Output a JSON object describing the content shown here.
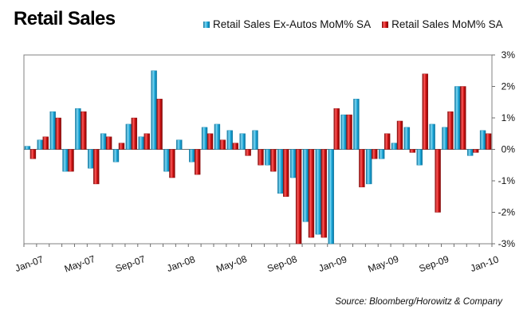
{
  "chart_data": {
    "type": "bar",
    "title": "Retail Sales",
    "categories": [
      "Jan-07",
      "Feb-07",
      "Mar-07",
      "Apr-07",
      "May-07",
      "Jun-07",
      "Jul-07",
      "Aug-07",
      "Sep-07",
      "Oct-07",
      "Nov-07",
      "Dec-07",
      "Jan-08",
      "Feb-08",
      "Mar-08",
      "Apr-08",
      "May-08",
      "Jun-08",
      "Jul-08",
      "Aug-08",
      "Sep-08",
      "Oct-08",
      "Nov-08",
      "Dec-08",
      "Jan-09",
      "Feb-09",
      "Mar-09",
      "Apr-09",
      "May-09",
      "Jun-09",
      "Jul-09",
      "Aug-09",
      "Sep-09",
      "Oct-09",
      "Nov-09",
      "Dec-09",
      "Jan-10"
    ],
    "x_tick_labels": [
      "Jan-07",
      "May-07",
      "Sep-07",
      "Jan-08",
      "May-08",
      "Sep-08",
      "Jan-09",
      "May-09",
      "Sep-09",
      "Jan-10"
    ],
    "series": [
      {
        "name": "Retail Sales Ex-Autos MoM% SA",
        "color": "#1aa6d8",
        "values": [
          0.1,
          0.3,
          1.2,
          -0.7,
          1.3,
          -0.6,
          0.5,
          -0.4,
          0.8,
          0.4,
          2.5,
          -0.7,
          0.3,
          -0.4,
          0.7,
          0.8,
          0.6,
          0.5,
          0.6,
          -0.5,
          -1.4,
          -0.9,
          -2.3,
          -2.7,
          -3.0,
          1.1,
          1.6,
          -1.1,
          -0.3,
          0.2,
          0.7,
          -0.5,
          0.8,
          0.7,
          2.0,
          -0.2,
          0.6
        ]
      },
      {
        "name": "Retail Sales MoM% SA",
        "color": "#cc1111",
        "values": [
          -0.3,
          0.4,
          1.0,
          -0.7,
          1.2,
          -1.1,
          0.4,
          0.2,
          1.0,
          0.5,
          1.6,
          -0.9,
          null,
          -0.8,
          0.5,
          0.3,
          0.2,
          -0.2,
          -0.5,
          -0.7,
          -1.5,
          -3.0,
          -2.8,
          -2.8,
          1.3,
          1.1,
          -1.2,
          -0.3,
          0.5,
          0.9,
          -0.1,
          2.4,
          -2.0,
          1.2,
          2.0,
          -0.1,
          0.5
        ]
      }
    ],
    "ylim": [
      -3,
      3
    ],
    "y_ticks": [
      3,
      2,
      1,
      0,
      -1,
      -2,
      -3
    ],
    "y_tick_labels": [
      "3%",
      "2%",
      "1%",
      "0%",
      "-1%",
      "-2%",
      "-3%"
    ],
    "legend_position": "top-right",
    "grid": false
  },
  "source": "Source: Bloomberg/Horowitz & Company"
}
